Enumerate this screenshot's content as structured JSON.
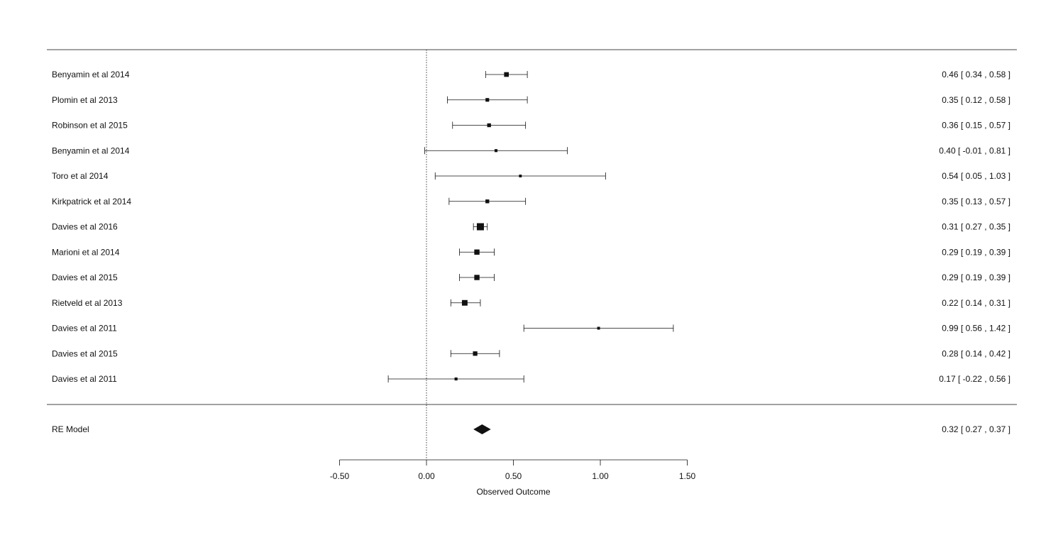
{
  "chart_data": {
    "type": "forest",
    "xlabel": "Observed Outcome",
    "xlim": [
      -0.5,
      1.5
    ],
    "xticks": [
      -0.5,
      0.0,
      0.5,
      1.0,
      1.5
    ],
    "xtick_labels": [
      "-0.50",
      "0.00",
      "0.50",
      "1.00",
      "1.50"
    ],
    "reference_line": 0,
    "studies": [
      {
        "label": "Benyamin et al 2014",
        "estimate": 0.46,
        "lower": 0.34,
        "upper": 0.58,
        "ci_text": "0.46 [  0.34 , 0.58 ]",
        "weight": 0.55
      },
      {
        "label": "Plomin et al 2013",
        "estimate": 0.35,
        "lower": 0.12,
        "upper": 0.58,
        "ci_text": "0.35 [  0.12 , 0.58 ]",
        "weight": 0.35
      },
      {
        "label": "Robinson et al 2015",
        "estimate": 0.36,
        "lower": 0.15,
        "upper": 0.57,
        "ci_text": "0.36 [  0.15 , 0.57 ]",
        "weight": 0.38
      },
      {
        "label": "Benyamin et al 2014",
        "estimate": 0.4,
        "lower": -0.01,
        "upper": 0.81,
        "ci_text": "0.40 [ -0.01 , 0.81 ]",
        "weight": 0.22
      },
      {
        "label": "Toro et al 2014",
        "estimate": 0.54,
        "lower": 0.05,
        "upper": 1.03,
        "ci_text": "0.54 [  0.05 , 1.03 ]",
        "weight": 0.18
      },
      {
        "label": "Kirkpatrick et al 2014",
        "estimate": 0.35,
        "lower": 0.13,
        "upper": 0.57,
        "ci_text": "0.35 [  0.13 , 0.57 ]",
        "weight": 0.38
      },
      {
        "label": "Davies et al 2016",
        "estimate": 0.31,
        "lower": 0.27,
        "upper": 0.35,
        "ci_text": "0.31 [  0.27 , 0.35 ]",
        "weight": 1.0
      },
      {
        "label": "Marioni et al 2014",
        "estimate": 0.29,
        "lower": 0.19,
        "upper": 0.39,
        "ci_text": "0.29 [  0.19 , 0.39 ]",
        "weight": 0.65
      },
      {
        "label": "Davies et al 2015",
        "estimate": 0.29,
        "lower": 0.19,
        "upper": 0.39,
        "ci_text": "0.29 [  0.19 , 0.39 ]",
        "weight": 0.65
      },
      {
        "label": "Rietveld et al 2013",
        "estimate": 0.22,
        "lower": 0.14,
        "upper": 0.31,
        "ci_text": "0.22 [  0.14 , 0.31 ]",
        "weight": 0.72
      },
      {
        "label": "Davies et al 2011",
        "estimate": 0.99,
        "lower": 0.56,
        "upper": 1.42,
        "ci_text": "0.99 [  0.56 , 1.42 ]",
        "weight": 0.2
      },
      {
        "label": "Davies et al 2015",
        "estimate": 0.28,
        "lower": 0.14,
        "upper": 0.42,
        "ci_text": "0.28 [  0.14 , 0.42 ]",
        "weight": 0.5
      },
      {
        "label": "Davies et al 2011",
        "estimate": 0.17,
        "lower": -0.22,
        "upper": 0.56,
        "ci_text": "0.17 [ -0.22 , 0.56 ]",
        "weight": 0.22
      }
    ],
    "summary": {
      "label": "RE Model",
      "estimate": 0.32,
      "lower": 0.27,
      "upper": 0.37,
      "ci_text": "0.32 [  0.27 , 0.37 ]"
    },
    "colors": {
      "ink": "#111111",
      "rule": "#444444"
    }
  }
}
